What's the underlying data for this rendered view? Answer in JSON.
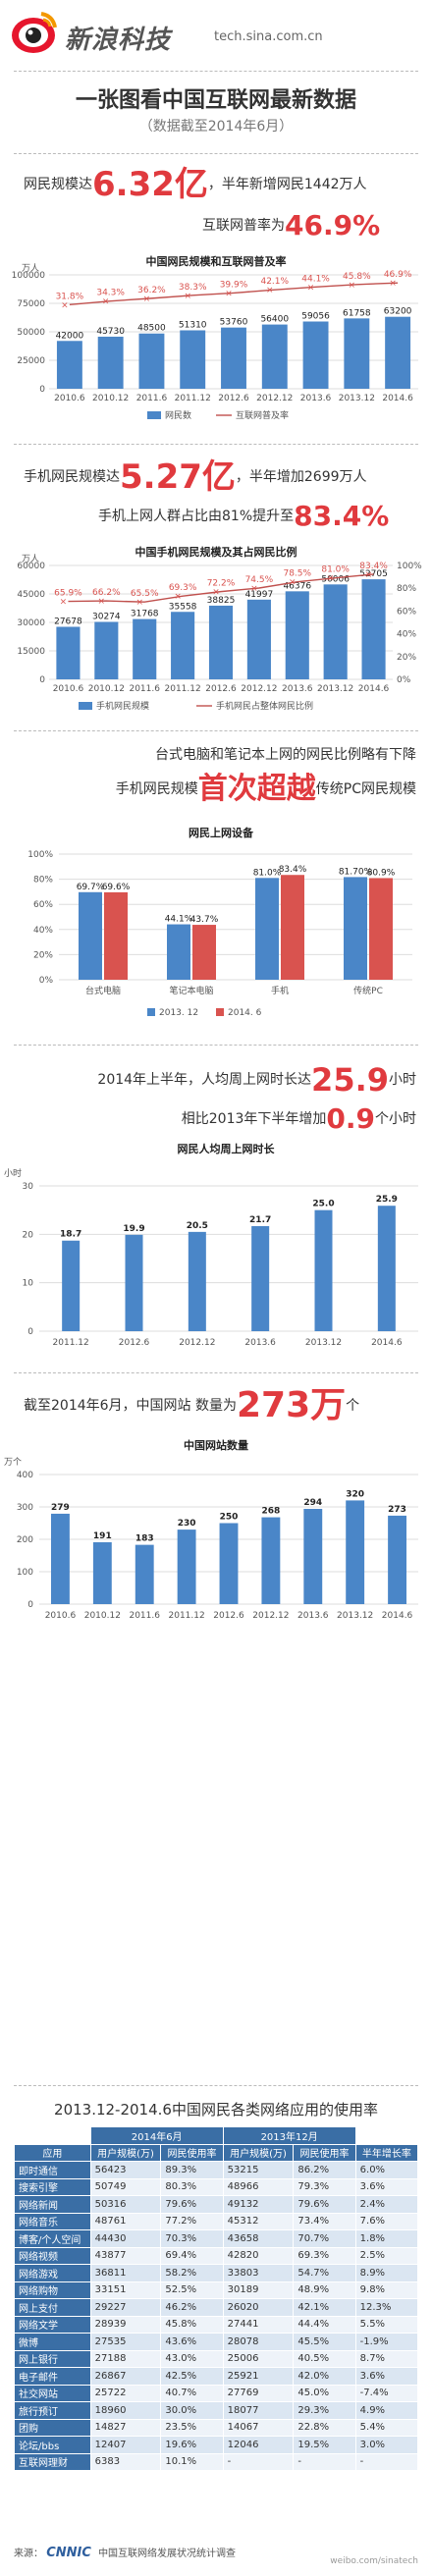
{
  "header": {
    "brand": "新浪科技",
    "site": "tech.sina.com.cn"
  },
  "title": "一张图看中国互联网最新数据",
  "subtitle": "（数据截至2014年6月）",
  "s1": {
    "prefix": "网民规模达",
    "big": "6.32亿",
    "suffix": "，半年新增网民1442万人",
    "line2_prefix": "互联网普率为",
    "line2_big": "46.9%"
  },
  "s2": {
    "prefix": "手机网民规模达",
    "big": "5.27亿",
    "suffix": "，半年增加2699万人",
    "line2_prefix": "手机上网人群占比由81%提升至",
    "line2_big": "83.4%"
  },
  "s3": {
    "line1": "台式电脑和笔记本上网的网民比例略有下降",
    "line2_prefix": "手机网民规模",
    "line2_big": "首次超越",
    "line2_suffix": "传统PC网民规模"
  },
  "s4": {
    "line1_prefix": "2014年上半年，人均周上网时长达",
    "line1_big": "25.9",
    "line1_suffix": "小时",
    "line2_prefix": "相比2013年下半年增加",
    "line2_big": "0.9",
    "line2_suffix": "个小时"
  },
  "s5": {
    "prefix": "截至2014年6月，中国网站 数量为",
    "big": "273万",
    "suffix": "个"
  },
  "chart_data": [
    {
      "type": "bar",
      "title": "中国网民规模和互联网普及率",
      "ylabel": "万人",
      "ylim": [
        0,
        100000
      ],
      "yticks": [
        "0",
        "25000",
        "50000",
        "75000",
        "100000"
      ],
      "categories": [
        "2010.6",
        "2010.12",
        "2011.6",
        "2011.12",
        "2012.6",
        "2012.12",
        "2013.6",
        "2013.12",
        "2014.6"
      ],
      "series": [
        {
          "name": "网民数",
          "values": [
            42000,
            45730,
            48500,
            51310,
            53760,
            56400,
            59056,
            61758,
            63200
          ]
        },
        {
          "name": "互联网普及率",
          "values": [
            "31.8%",
            "34.3%",
            "36.2%",
            "38.3%",
            "39.9%",
            "42.1%",
            "44.1%",
            "45.8%",
            "46.9%"
          ],
          "numeric": [
            31.8,
            34.3,
            36.2,
            38.3,
            39.9,
            42.1,
            44.1,
            45.8,
            46.9
          ]
        }
      ],
      "colors": {
        "bar": "#4a86c8",
        "line": "#c0504d"
      }
    },
    {
      "type": "bar",
      "title": "中国手机网民规模及其占网民比例",
      "ylabel": "万人",
      "ylim": [
        0,
        60000
      ],
      "yticks": [
        "0",
        "15000",
        "30000",
        "45000",
        "60000"
      ],
      "y2ticks": [
        "0%",
        "20%",
        "40%",
        "60%",
        "80%",
        "100%"
      ],
      "categories": [
        "2010.6",
        "2010.12",
        "2011.6",
        "2011.12",
        "2012.6",
        "2012.12",
        "2013.6",
        "2013.12",
        "2014.6"
      ],
      "series": [
        {
          "name": "手机网民规模",
          "values": [
            27678,
            30274,
            31768,
            35558,
            38825,
            41997,
            46376,
            50006,
            52705
          ]
        },
        {
          "name": "手机网民占整体网民比例",
          "values": [
            "65.9%",
            "66.2%",
            "65.5%",
            "69.3%",
            "72.2%",
            "74.5%",
            "78.5%",
            "81.0%",
            "83.4%"
          ],
          "numeric": [
            65.9,
            66.2,
            65.5,
            69.3,
            72.2,
            74.5,
            78.5,
            81.0,
            83.4
          ]
        }
      ],
      "colors": {
        "bar": "#4a86c8",
        "line": "#c0504d"
      }
    },
    {
      "type": "bar",
      "title": "网民上网设备",
      "ylim": [
        0,
        100
      ],
      "yticks": [
        "0%",
        "20%",
        "40%",
        "60%",
        "80%",
        "100%"
      ],
      "categories": [
        "台式电脑",
        "笔记本电脑",
        "手机",
        "传统PC"
      ],
      "series": [
        {
          "name": "2013. 12",
          "values": [
            69.7,
            44.1,
            81.0,
            81.7
          ],
          "labels": [
            "69.7%",
            "44.1%",
            "81.0%",
            "81.70%"
          ]
        },
        {
          "name": "2014. 6",
          "values": [
            69.6,
            43.7,
            83.4,
            80.9
          ],
          "labels": [
            "69.6%",
            "43.7%",
            "83.4%",
            "80.9%"
          ]
        }
      ],
      "colors": {
        "s1": "#4a86c8",
        "s2": "#d9534f"
      }
    },
    {
      "type": "bar",
      "title": "网民人均周上网时长",
      "ylabel": "小时",
      "ylim": [
        0,
        30
      ],
      "yticks": [
        "0",
        "10",
        "20",
        "30"
      ],
      "categories": [
        "2011.12",
        "2012.6",
        "2012.12",
        "2013.6",
        "2013.12",
        "2014.6"
      ],
      "values": [
        18.7,
        19.9,
        20.5,
        21.7,
        25.0,
        25.9
      ],
      "labels": [
        "18.7",
        "19.9",
        "20.5",
        "21.7",
        "25.0",
        "25.9"
      ],
      "colors": {
        "bar": "#4a86c8"
      }
    },
    {
      "type": "bar",
      "title": "中国网站数量",
      "ylabel": "万个",
      "ylim": [
        0,
        400
      ],
      "yticks": [
        "0",
        "100",
        "200",
        "300",
        "400"
      ],
      "categories": [
        "2010.6",
        "2010.12",
        "2011.6",
        "2011.12",
        "2012.6",
        "2012.12",
        "2013.6",
        "2013.12",
        "2014.6"
      ],
      "values": [
        279,
        191,
        183,
        230,
        250,
        268,
        294,
        320,
        273
      ],
      "colors": {
        "bar": "#4a86c8"
      }
    },
    {
      "type": "table",
      "title": "2013.12-2014.6中国网民各类网络应用的使用率",
      "group_headers": [
        "2014年6月",
        "2013年12月"
      ],
      "columns": [
        "应用",
        "用户规模(万)",
        "网民使用率",
        "用户规模(万)",
        "网民使用率",
        "半年增长率"
      ],
      "rows": [
        [
          "即时通信",
          "56423",
          "89.3%",
          "53215",
          "86.2%",
          "6.0%"
        ],
        [
          "搜索引擎",
          "50749",
          "80.3%",
          "48966",
          "79.3%",
          "3.6%"
        ],
        [
          "网络新闻",
          "50316",
          "79.6%",
          "49132",
          "79.6%",
          "2.4%"
        ],
        [
          "网络音乐",
          "48761",
          "77.2%",
          "45312",
          "73.4%",
          "7.6%"
        ],
        [
          "博客/个人空间",
          "44430",
          "70.3%",
          "43658",
          "70.7%",
          "1.8%"
        ],
        [
          "网络视频",
          "43877",
          "69.4%",
          "42820",
          "69.3%",
          "2.5%"
        ],
        [
          "网络游戏",
          "36811",
          "58.2%",
          "33803",
          "54.7%",
          "8.9%"
        ],
        [
          "网络购物",
          "33151",
          "52.5%",
          "30189",
          "48.9%",
          "9.8%"
        ],
        [
          "网上支付",
          "29227",
          "46.2%",
          "26020",
          "42.1%",
          "12.3%"
        ],
        [
          "网络文学",
          "28939",
          "45.8%",
          "27441",
          "44.4%",
          "5.5%"
        ],
        [
          "微博",
          "27535",
          "43.6%",
          "28078",
          "45.5%",
          "-1.9%"
        ],
        [
          "网上银行",
          "27188",
          "43.0%",
          "25006",
          "40.5%",
          "8.7%"
        ],
        [
          "电子邮件",
          "26867",
          "42.5%",
          "25921",
          "42.0%",
          "3.6%"
        ],
        [
          "社交网站",
          "25722",
          "40.7%",
          "27769",
          "45.0%",
          "-7.4%"
        ],
        [
          "旅行预订",
          "18960",
          "30.0%",
          "18077",
          "29.3%",
          "4.9%"
        ],
        [
          "团购",
          "14827",
          "23.5%",
          "14067",
          "22.8%",
          "5.4%"
        ],
        [
          "论坛/bbs",
          "12407",
          "19.6%",
          "12046",
          "19.5%",
          "3.0%"
        ],
        [
          "互联网理财",
          "6383",
          "10.1%",
          "-",
          "-",
          "-"
        ]
      ]
    }
  ],
  "footer": {
    "source_label": "来源：",
    "org": "CNNIC",
    "source": "中国互联网络发展状况统计调查",
    "watermark": "weibo.com/sinatech"
  }
}
